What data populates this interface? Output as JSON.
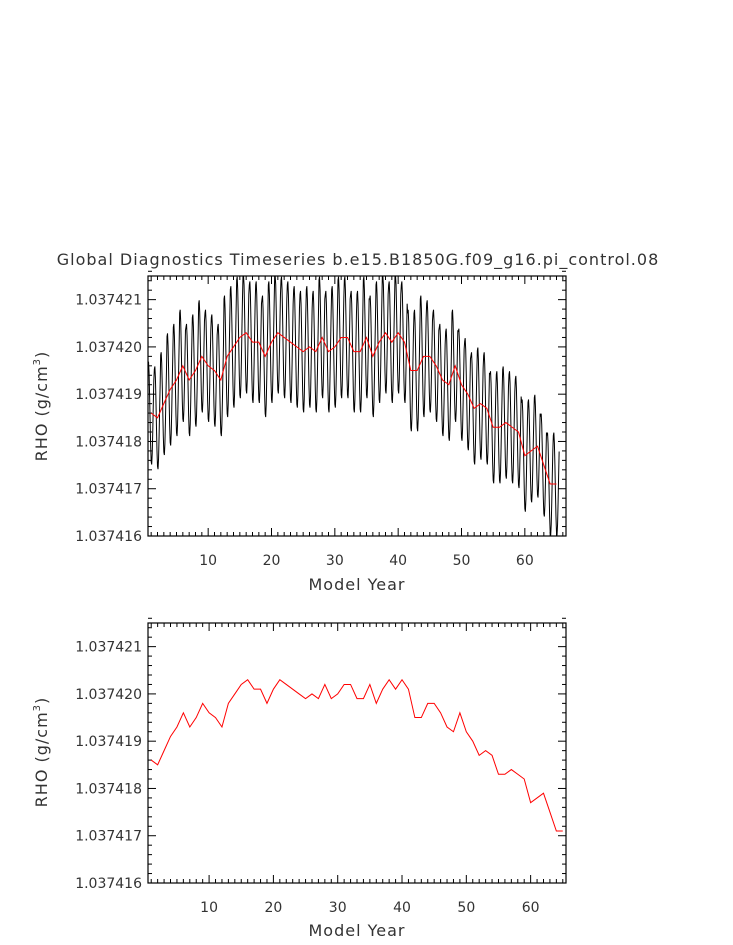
{
  "chart_data": [
    {
      "type": "line",
      "title": "Global Diagnostics Timeseries b.e15.B1850G.f09_g16.pi_control.08",
      "xlabel": "Model Year",
      "ylabel_main": "RHO (g/cm",
      "ylabel_sup": "3",
      "ylabel_close": ")",
      "xlim": [
        0.5,
        66.5
      ],
      "ylim": [
        1.037416,
        1.0374215
      ],
      "xticks": [
        10,
        20,
        30,
        40,
        50,
        60
      ],
      "yticks": [
        1.037416,
        1.037417,
        1.037418,
        1.037419,
        1.03742,
        1.037421
      ],
      "ytick_labels": [
        "1.037416",
        "1.037417",
        "1.037418",
        "1.037419",
        "1.037420",
        "1.037421"
      ],
      "series": [
        {
          "color": "#000000",
          "x_start": 0.5,
          "x_step": 0.0833333,
          "annual_means": [
            1.0374186,
            1.0374185,
            1.0374188,
            1.0374191,
            1.0374193,
            1.0374196,
            1.0374193,
            1.0374195,
            1.0374198,
            1.0374196,
            1.0374195,
            1.0374193,
            1.0374198,
            1.03742,
            1.0374202,
            1.0374203,
            1.0374201,
            1.0374201,
            1.0374198,
            1.0374201,
            1.0374203,
            1.0374202,
            1.0374201,
            1.03742,
            1.0374199,
            1.03742,
            1.0374199,
            1.0374202,
            1.0374199,
            1.03742,
            1.0374202,
            1.0374202,
            1.0374199,
            1.0374199,
            1.0374202,
            1.0374198,
            1.0374201,
            1.0374203,
            1.0374201,
            1.0374203,
            1.0374201,
            1.0374195,
            1.0374195,
            1.0374198,
            1.0374198,
            1.0374196,
            1.0374193,
            1.0374192,
            1.0374196,
            1.0374192,
            1.037419,
            1.0374187,
            1.0374188,
            1.0374187,
            1.0374183,
            1.0374183,
            1.0374184,
            1.0374183,
            1.0374182,
            1.0374177,
            1.0374178,
            1.0374179,
            1.0374175,
            1.0374171,
            1.0374171
          ],
          "seasonal_amplitude": [
            1.1e-06,
            1.1e-06,
            1.1e-06,
            1.2e-06,
            1.2e-06,
            1.2e-06,
            1.2e-06,
            1.2e-06,
            1.2e-06,
            1.2e-06,
            1.2e-06,
            1.2e-06,
            1.3e-06,
            1.3e-06,
            1.3e-06,
            1.3e-06,
            1.3e-06,
            1.3e-06,
            1.3e-06,
            1.3e-06,
            1.3e-06,
            1.3e-06,
            1.3e-06,
            1.3e-06,
            1.3e-06,
            1.3e-06,
            1.3e-06,
            1.3e-06,
            1.3e-06,
            1.3e-06,
            1.3e-06,
            1.3e-06,
            1.3e-06,
            1.3e-06,
            1.3e-06,
            1.3e-06,
            1.3e-06,
            1.3e-06,
            1.3e-06,
            1.3e-06,
            1.3e-06,
            1.3e-06,
            1.3e-06,
            1.3e-06,
            1.2e-06,
            1.2e-06,
            1.2e-06,
            1.2e-06,
            1.2e-06,
            1.2e-06,
            1.2e-06,
            1.2e-06,
            1.2e-06,
            1.2e-06,
            1.2e-06,
            1.2e-06,
            1.2e-06,
            1.2e-06,
            1.2e-06,
            1.2e-06,
            1.1e-06,
            1.1e-06,
            1.1e-06,
            1.1e-06,
            1.1e-06
          ]
        },
        {
          "color": "#ff0000",
          "x": [
            1,
            2,
            3,
            4,
            5,
            6,
            7,
            8,
            9,
            10,
            11,
            12,
            13,
            14,
            15,
            16,
            17,
            18,
            19,
            20,
            21,
            22,
            23,
            24,
            25,
            26,
            27,
            28,
            29,
            30,
            31,
            32,
            33,
            34,
            35,
            36,
            37,
            38,
            39,
            40,
            41,
            42,
            43,
            44,
            45,
            46,
            47,
            48,
            49,
            50,
            51,
            52,
            53,
            54,
            55,
            56,
            57,
            58,
            59,
            60,
            61,
            62,
            63,
            64,
            65
          ],
          "values": [
            1.0374186,
            1.0374185,
            1.0374188,
            1.0374191,
            1.0374193,
            1.0374196,
            1.0374193,
            1.0374195,
            1.0374198,
            1.0374196,
            1.0374195,
            1.0374193,
            1.0374198,
            1.03742,
            1.0374202,
            1.0374203,
            1.0374201,
            1.0374201,
            1.0374198,
            1.0374201,
            1.0374203,
            1.0374202,
            1.0374201,
            1.03742,
            1.0374199,
            1.03742,
            1.0374199,
            1.0374202,
            1.0374199,
            1.03742,
            1.0374202,
            1.0374202,
            1.0374199,
            1.0374199,
            1.0374202,
            1.0374198,
            1.0374201,
            1.0374203,
            1.0374201,
            1.0374203,
            1.0374201,
            1.0374195,
            1.0374195,
            1.0374198,
            1.0374198,
            1.0374196,
            1.0374193,
            1.0374192,
            1.0374196,
            1.0374192,
            1.037419,
            1.0374187,
            1.0374188,
            1.0374187,
            1.0374183,
            1.0374183,
            1.0374184,
            1.0374183,
            1.0374182,
            1.0374177,
            1.0374178,
            1.0374179,
            1.0374175,
            1.0374171,
            1.0374171
          ]
        }
      ]
    },
    {
      "type": "line",
      "title": "",
      "xlabel": "Model Year",
      "ylabel_main": "RHO (g/cm",
      "ylabel_sup": "3",
      "ylabel_close": ")",
      "xlim": [
        0.5,
        65.5
      ],
      "ylim": [
        1.037416,
        1.0374215
      ],
      "xticks": [
        10,
        20,
        30,
        40,
        50,
        60
      ],
      "yticks": [
        1.037416,
        1.037417,
        1.037418,
        1.037419,
        1.03742,
        1.037421
      ],
      "ytick_labels": [
        "1.037416",
        "1.037417",
        "1.037418",
        "1.037419",
        "1.037420",
        "1.037421"
      ],
      "series": [
        {
          "color": "#ff0000",
          "x": [
            1,
            2,
            3,
            4,
            5,
            6,
            7,
            8,
            9,
            10,
            11,
            12,
            13,
            14,
            15,
            16,
            17,
            18,
            19,
            20,
            21,
            22,
            23,
            24,
            25,
            26,
            27,
            28,
            29,
            30,
            31,
            32,
            33,
            34,
            35,
            36,
            37,
            38,
            39,
            40,
            41,
            42,
            43,
            44,
            45,
            46,
            47,
            48,
            49,
            50,
            51,
            52,
            53,
            54,
            55,
            56,
            57,
            58,
            59,
            60,
            61,
            62,
            63,
            64,
            65
          ],
          "values": [
            1.0374186,
            1.0374185,
            1.0374188,
            1.0374191,
            1.0374193,
            1.0374196,
            1.0374193,
            1.0374195,
            1.0374198,
            1.0374196,
            1.0374195,
            1.0374193,
            1.0374198,
            1.03742,
            1.0374202,
            1.0374203,
            1.0374201,
            1.0374201,
            1.0374198,
            1.0374201,
            1.0374203,
            1.0374202,
            1.0374201,
            1.03742,
            1.0374199,
            1.03742,
            1.0374199,
            1.0374202,
            1.0374199,
            1.03742,
            1.0374202,
            1.0374202,
            1.0374199,
            1.0374199,
            1.0374202,
            1.0374198,
            1.0374201,
            1.0374203,
            1.0374201,
            1.0374203,
            1.0374201,
            1.0374195,
            1.0374195,
            1.0374198,
            1.0374198,
            1.0374196,
            1.0374193,
            1.0374192,
            1.0374196,
            1.0374192,
            1.037419,
            1.0374187,
            1.0374188,
            1.0374187,
            1.0374183,
            1.0374183,
            1.0374184,
            1.0374183,
            1.0374182,
            1.0374177,
            1.0374178,
            1.0374179,
            1.0374175,
            1.0374171,
            1.0374171
          ]
        }
      ]
    }
  ]
}
